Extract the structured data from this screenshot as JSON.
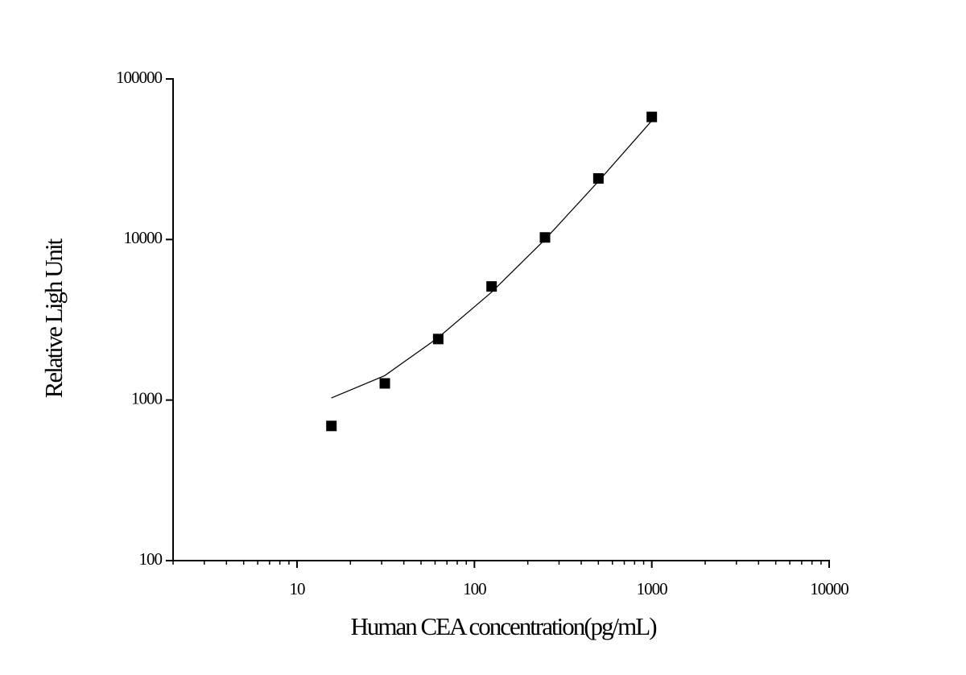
{
  "chart_data": {
    "type": "scatter",
    "x_label": "Human CEA concentration(pg/mL)",
    "y_label": "Relative Ligh Unit",
    "xscale": "log",
    "yscale": "log",
    "xlim": [
      2,
      10000
    ],
    "ylim": [
      100,
      100000
    ],
    "xticks": [
      10,
      100,
      1000,
      10000
    ],
    "xminorticks": [
      2,
      3,
      4,
      5,
      6,
      7,
      8,
      9,
      20,
      30,
      40,
      50,
      60,
      70,
      80,
      90,
      200,
      300,
      400,
      500,
      600,
      700,
      800,
      900,
      2000,
      3000,
      4000,
      5000,
      6000,
      7000,
      8000,
      9000
    ],
    "yticks": [
      100,
      1000,
      10000,
      100000
    ],
    "grid": false,
    "series": [
      {
        "mode": "markers",
        "marker": "square",
        "color": "#000000",
        "x": [
          15.625,
          31.25,
          62.5,
          125,
          250,
          500,
          1000
        ],
        "values": [
          690,
          1270,
          2400,
          5100,
          10300,
          24000,
          58000
        ]
      },
      {
        "mode": "line",
        "color": "#000000",
        "x": [
          15.625,
          31.25,
          62.5,
          125,
          250,
          500,
          1000
        ],
        "values": [
          1030,
          1420,
          2450,
          4700,
          10000,
          23000,
          55000
        ]
      }
    ]
  }
}
